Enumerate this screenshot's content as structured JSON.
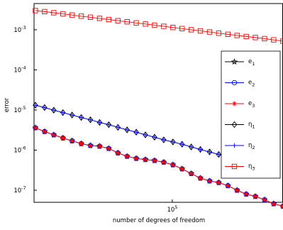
{
  "chart_data": {
    "type": "line",
    "xlabel": "number of degrees of freedom",
    "ylabel": "error",
    "xscale": "log",
    "yscale": "log",
    "xlim": [
      16600,
      421000
    ],
    "ylim": [
      5e-08,
      0.0045
    ],
    "xticks": [
      {
        "value": 100000,
        "label": "105"
      }
    ],
    "yticks": [
      {
        "value": 1e-07,
        "label": "10-7"
      },
      {
        "value": 1e-06,
        "label": "10-6"
      },
      {
        "value": 1e-05,
        "label": "10-5"
      },
      {
        "value": 0.0001,
        "label": "10-4"
      },
      {
        "value": 0.001,
        "label": "10-3"
      }
    ],
    "grid": false,
    "legend": "right",
    "x": [
      16900,
      19040,
      21450,
      24160,
      27210,
      30650,
      34520,
      38890,
      43800,
      49340,
      55580,
      62600,
      70520,
      79430,
      89470,
      100800,
      113500,
      127900,
      144000,
      162200,
      182700,
      205800,
      231800,
      261100,
      294100,
      331300,
      373200,
      420400
    ],
    "series": [
      {
        "name": "e1",
        "color": "#000000",
        "marker": "star",
        "values": [
          3.6e-06,
          2.9e-06,
          2.4e-06,
          2e-06,
          1.7e-06,
          1.45e-06,
          1.3e-06,
          1.25e-06,
          1.1e-06,
          8.5e-07,
          7e-07,
          6.2e-07,
          5.8e-07,
          5.5e-07,
          5e-07,
          4.3e-07,
          3.4e-07,
          2.6e-07,
          2e-07,
          1.7e-07,
          1.55e-07,
          1.3e-07,
          1e-07,
          8e-08,
          7e-08,
          5.8e-08,
          4.6e-08,
          4e-08
        ]
      },
      {
        "name": "e2",
        "color": "#0000ff",
        "marker": "circle",
        "values": [
          3.6e-06,
          2.9e-06,
          2.4e-06,
          2e-06,
          1.7e-06,
          1.45e-06,
          1.3e-06,
          1.25e-06,
          1.1e-06,
          8.5e-07,
          7e-07,
          6.2e-07,
          5.8e-07,
          5.5e-07,
          5e-07,
          4.3e-07,
          3.4e-07,
          2.6e-07,
          2e-07,
          1.7e-07,
          1.55e-07,
          1.3e-07,
          1e-07,
          8e-08,
          7e-08,
          5.8e-08,
          4.6e-08,
          4e-08
        ]
      },
      {
        "name": "e3",
        "color": "#ff0000",
        "marker": "asterisk",
        "values": [
          3.6e-06,
          2.9e-06,
          2.4e-06,
          2e-06,
          1.7e-06,
          1.45e-06,
          1.3e-06,
          1.25e-06,
          1.1e-06,
          8.5e-07,
          7e-07,
          6.2e-07,
          5.8e-07,
          5.5e-07,
          5e-07,
          4.3e-07,
          3.4e-07,
          2.6e-07,
          2e-07,
          1.7e-07,
          1.55e-07,
          1.3e-07,
          1e-07,
          8e-08,
          7e-08,
          5.8e-08,
          4.6e-08,
          4e-08
        ]
      },
      {
        "name": "η1",
        "color": "#000000",
        "marker": "diamond",
        "values": [
          1.32e-05,
          1.15e-05,
          9.9e-06,
          8.6e-06,
          7.5e-06,
          6.5e-06,
          5.7e-06,
          4.9e-06,
          4.3e-06,
          3.7e-06,
          3.2e-06,
          2.8e-06,
          2.4e-06,
          2.1e-06,
          1.8e-06,
          1.6e-06,
          1.4e-06,
          1.2e-06,
          1.04e-06,
          9e-07,
          7.8e-07,
          6.8e-07,
          5.9e-07,
          5.1e-07,
          4.4e-07,
          3.8e-07,
          null,
          null
        ]
      },
      {
        "name": "η2",
        "color": "#0000ff",
        "marker": "plus",
        "values": [
          1.32e-05,
          1.15e-05,
          9.9e-06,
          8.6e-06,
          7.5e-06,
          6.5e-06,
          5.7e-06,
          4.9e-06,
          4.3e-06,
          3.7e-06,
          3.2e-06,
          2.8e-06,
          2.4e-06,
          2.1e-06,
          1.8e-06,
          1.6e-06,
          1.4e-06,
          1.2e-06,
          1.04e-06,
          9e-07,
          7.8e-07,
          6.8e-07,
          5.9e-07,
          5.1e-07,
          4.4e-07,
          3.8e-07,
          null,
          null
        ]
      },
      {
        "name": "η3",
        "color": "#ff0000",
        "marker": "square",
        "values": [
          0.003,
          0.00283,
          0.00265,
          0.00249,
          0.00233,
          0.00218,
          0.00205,
          0.00192,
          0.0018,
          0.00168,
          0.00158,
          0.00148,
          0.00139,
          0.0013,
          0.00122,
          0.00114,
          0.00107,
          0.001,
          0.00094,
          0.00088,
          0.00082,
          0.00077,
          0.00072,
          0.00068,
          0.00064,
          0.0006,
          0.00056,
          0.00052
        ]
      }
    ]
  }
}
